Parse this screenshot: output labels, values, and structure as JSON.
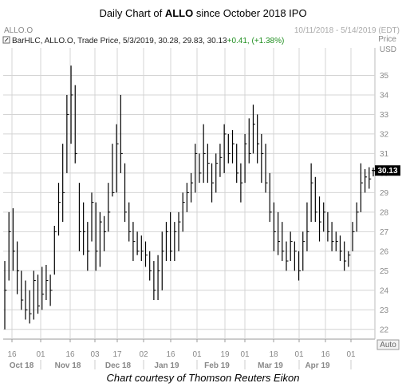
{
  "title": {
    "prefix": "Daily Chart of ",
    "ticker": "ALLO",
    "suffix": " since October 2018 IPO"
  },
  "caption": "Chart courtesy of Thomson Reuters Eikon",
  "header": {
    "symbol": "ALLO.O",
    "date_range": "10/11/2018 - 5/14/2019 (EDT)",
    "legend_label": "BarHLC, ALLO.O, Trade Price, 5/3/2019, 30.28, 29.83, 30.13",
    "legend_change": "+0.41, (+1.38%)",
    "price_label": "Price",
    "currency_label": "USD",
    "auto_label": "Auto"
  },
  "colors": {
    "bars": "#000000",
    "grid": "#d4d4d4",
    "last_price_bg": "#000000",
    "change_positive": "#1f8f1f",
    "axis_text": "#888888"
  },
  "chart_data": {
    "type": "bar",
    "style": "HLC",
    "symbol": "ALLO.O",
    "ylim": [
      21.5,
      36.0
    ],
    "yticks": [
      22,
      23,
      24,
      25,
      26,
      27,
      28,
      29,
      30,
      31,
      32,
      33,
      34,
      35
    ],
    "last_price": "30.13",
    "x_day_ticks": [
      "16",
      "01",
      "16",
      "03",
      "17",
      "02",
      "16",
      "01",
      "19",
      "01",
      "18",
      "01",
      "16",
      "01"
    ],
    "x_month_labels": [
      "Oct 18",
      "Nov 18",
      "Dec 18",
      "Jan 19",
      "Feb 19",
      "Mar 19",
      "Apr 19"
    ],
    "grid": true,
    "bars": [
      {
        "high": 25.5,
        "low": 22.0,
        "close": 24.0
      },
      {
        "high": 28.0,
        "low": 24.5,
        "close": 27.0
      },
      {
        "high": 28.2,
        "low": 25.0,
        "close": 26.0
      },
      {
        "high": 26.5,
        "low": 23.8,
        "close": 25.0
      },
      {
        "high": 25.0,
        "low": 23.0,
        "close": 23.5
      },
      {
        "high": 24.5,
        "low": 22.5,
        "close": 23.0
      },
      {
        "high": 24.0,
        "low": 22.3,
        "close": 22.8
      },
      {
        "high": 25.0,
        "low": 22.5,
        "close": 24.5
      },
      {
        "high": 24.8,
        "low": 22.8,
        "close": 23.2
      },
      {
        "high": 25.2,
        "low": 23.0,
        "close": 23.8
      },
      {
        "high": 25.3,
        "low": 23.5,
        "close": 24.5
      },
      {
        "high": 24.8,
        "low": 23.2,
        "close": 24.0
      },
      {
        "high": 27.3,
        "low": 24.8,
        "close": 27.0
      },
      {
        "high": 29.5,
        "low": 26.8,
        "close": 28.5
      },
      {
        "high": 31.5,
        "low": 27.5,
        "close": 29.0
      },
      {
        "high": 34.0,
        "low": 30.0,
        "close": 33.0
      },
      {
        "high": 35.5,
        "low": 31.5,
        "close": 34.0
      },
      {
        "high": 34.5,
        "low": 30.5,
        "close": 31.0
      },
      {
        "high": 29.5,
        "low": 26.0,
        "close": 27.0
      },
      {
        "high": 28.5,
        "low": 25.8,
        "close": 27.0
      },
      {
        "high": 27.5,
        "low": 25.0,
        "close": 26.0
      },
      {
        "high": 29.0,
        "low": 26.5,
        "close": 28.5
      },
      {
        "high": 28.5,
        "low": 25.0,
        "close": 26.0
      },
      {
        "high": 28.0,
        "low": 25.2,
        "close": 27.5
      },
      {
        "high": 27.8,
        "low": 26.0,
        "close": 27.0
      },
      {
        "high": 29.5,
        "low": 27.0,
        "close": 28.0
      },
      {
        "high": 31.5,
        "low": 28.8,
        "close": 29.0
      },
      {
        "high": 32.5,
        "low": 29.0,
        "close": 31.5
      },
      {
        "high": 34.0,
        "low": 30.0,
        "close": 31.0
      },
      {
        "high": 30.5,
        "low": 27.5,
        "close": 28.0
      },
      {
        "high": 28.5,
        "low": 26.5,
        "close": 27.0
      },
      {
        "high": 27.5,
        "low": 25.5,
        "close": 26.5
      },
      {
        "high": 27.0,
        "low": 25.8,
        "close": 26.0
      },
      {
        "high": 26.8,
        "low": 25.5,
        "close": 26.0
      },
      {
        "high": 26.5,
        "low": 25.2,
        "close": 25.8
      },
      {
        "high": 26.0,
        "low": 24.5,
        "close": 25.0
      },
      {
        "high": 25.5,
        "low": 23.5,
        "close": 24.0
      },
      {
        "high": 25.8,
        "low": 23.5,
        "close": 25.0
      },
      {
        "high": 27.0,
        "low": 24.0,
        "close": 26.0
      },
      {
        "high": 27.5,
        "low": 25.5,
        "close": 27.0
      },
      {
        "high": 28.0,
        "low": 25.5,
        "close": 26.0
      },
      {
        "high": 27.5,
        "low": 25.5,
        "close": 27.0
      },
      {
        "high": 28.0,
        "low": 26.0,
        "close": 27.5
      },
      {
        "high": 29.0,
        "low": 27.0,
        "close": 28.5
      },
      {
        "high": 29.5,
        "low": 28.0,
        "close": 29.0
      },
      {
        "high": 30.0,
        "low": 28.5,
        "close": 29.5
      },
      {
        "high": 31.5,
        "low": 29.0,
        "close": 31.0
      },
      {
        "high": 31.0,
        "low": 29.5,
        "close": 30.0
      },
      {
        "high": 32.5,
        "low": 29.5,
        "close": 31.0
      },
      {
        "high": 31.5,
        "low": 29.5,
        "close": 30.5
      },
      {
        "high": 30.5,
        "low": 28.5,
        "close": 29.5
      },
      {
        "high": 31.0,
        "low": 29.0,
        "close": 30.5
      },
      {
        "high": 31.5,
        "low": 29.8,
        "close": 30.8
      },
      {
        "high": 32.5,
        "low": 30.0,
        "close": 32.0
      },
      {
        "high": 32.0,
        "low": 30.5,
        "close": 31.0
      },
      {
        "high": 32.2,
        "low": 30.5,
        "close": 31.5
      },
      {
        "high": 31.5,
        "low": 29.5,
        "close": 30.0
      },
      {
        "high": 30.5,
        "low": 28.5,
        "close": 29.5
      },
      {
        "high": 32.0,
        "low": 29.5,
        "close": 31.5
      },
      {
        "high": 32.8,
        "low": 30.5,
        "close": 31.0
      },
      {
        "high": 33.5,
        "low": 31.0,
        "close": 32.5
      },
      {
        "high": 33.0,
        "low": 30.5,
        "close": 31.5
      },
      {
        "high": 32.0,
        "low": 29.5,
        "close": 31.0
      },
      {
        "high": 31.5,
        "low": 29.0,
        "close": 29.5
      },
      {
        "high": 30.0,
        "low": 27.5,
        "close": 28.0
      },
      {
        "high": 28.5,
        "low": 26.0,
        "close": 27.0
      },
      {
        "high": 28.0,
        "low": 25.8,
        "close": 26.5
      },
      {
        "high": 27.5,
        "low": 25.5,
        "close": 26.0
      },
      {
        "high": 26.5,
        "low": 25.0,
        "close": 25.5
      },
      {
        "high": 27.0,
        "low": 25.5,
        "close": 26.5
      },
      {
        "high": 26.5,
        "low": 25.0,
        "close": 26.0
      },
      {
        "high": 26.0,
        "low": 24.5,
        "close": 25.0
      },
      {
        "high": 27.0,
        "low": 25.0,
        "close": 26.5
      },
      {
        "high": 28.5,
        "low": 26.0,
        "close": 27.0
      },
      {
        "high": 30.5,
        "low": 27.5,
        "close": 29.5
      },
      {
        "high": 29.8,
        "low": 27.5,
        "close": 28.0
      },
      {
        "high": 28.8,
        "low": 26.5,
        "close": 27.5
      },
      {
        "high": 28.5,
        "low": 27.0,
        "close": 28.0
      },
      {
        "high": 28.0,
        "low": 26.5,
        "close": 27.0
      },
      {
        "high": 27.5,
        "low": 26.0,
        "close": 26.5
      },
      {
        "high": 27.0,
        "low": 26.0,
        "close": 26.5
      },
      {
        "high": 26.8,
        "low": 25.5,
        "close": 26.0
      },
      {
        "high": 26.5,
        "low": 25.0,
        "close": 25.5
      },
      {
        "high": 26.0,
        "low": 25.2,
        "close": 25.8
      },
      {
        "high": 27.5,
        "low": 26.0,
        "close": 27.0
      },
      {
        "high": 28.5,
        "low": 27.0,
        "close": 28.0
      },
      {
        "high": 30.5,
        "low": 28.0,
        "close": 29.5
      },
      {
        "high": 30.2,
        "low": 29.0,
        "close": 29.8
      },
      {
        "high": 30.3,
        "low": 29.2,
        "close": 29.7
      },
      {
        "high": 30.28,
        "low": 29.83,
        "close": 30.13
      }
    ]
  }
}
